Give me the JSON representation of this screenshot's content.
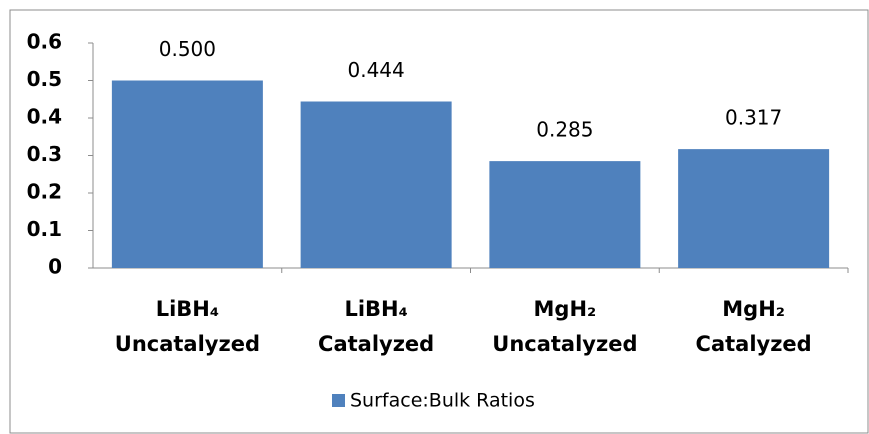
{
  "chart_data": {
    "type": "bar",
    "categories": [
      [
        "LiBH₄",
        "Uncatalyzed"
      ],
      [
        "LiBH₄",
        "Catalyzed"
      ],
      [
        "MgH₂",
        "Uncatalyzed"
      ],
      [
        "MgH₂",
        "Catalyzed"
      ]
    ],
    "series": [
      {
        "name": "Surface:Bulk Ratios",
        "color": "#4f81bd",
        "values": [
          0.5,
          0.444,
          0.285,
          0.317
        ],
        "value_labels": [
          "0.500",
          "0.444",
          "0.285",
          "0.317"
        ]
      }
    ],
    "ylim": [
      0,
      0.6
    ],
    "yticks": [
      0,
      0.1,
      0.2,
      0.3,
      0.4,
      0.5,
      0.6
    ],
    "legend": "bottom"
  }
}
